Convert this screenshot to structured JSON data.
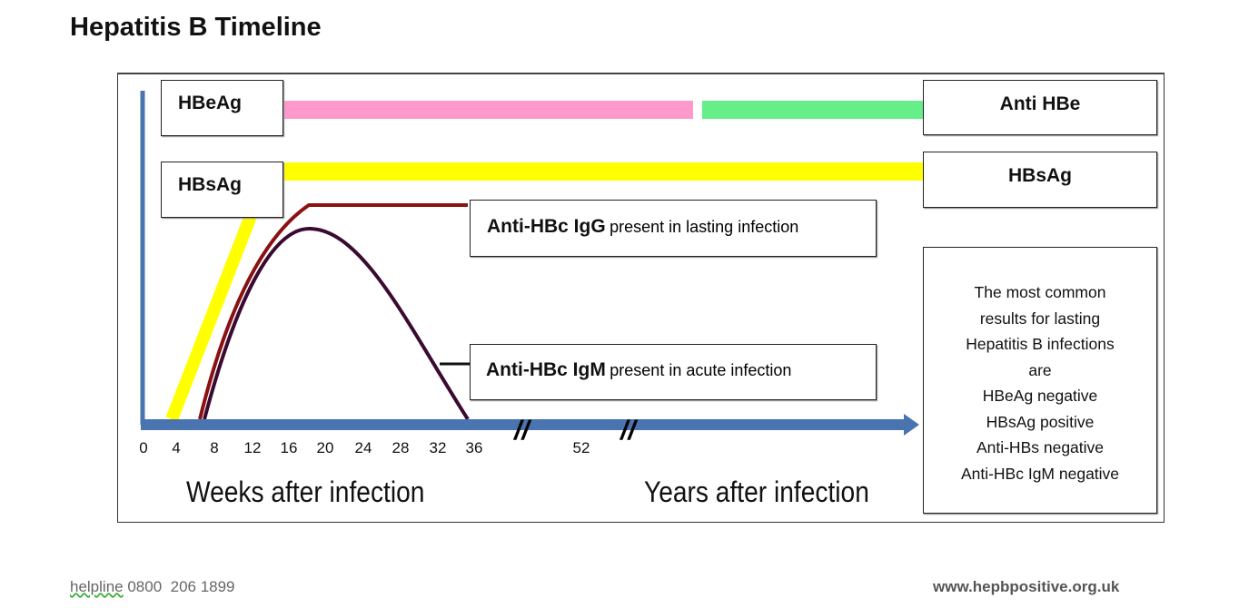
{
  "title": "Hepatitis B Timeline",
  "markers": {
    "hbeag_left": "HBeAg",
    "hbsag_left": "HBsAg",
    "anti_hbe_right": "Anti HBe",
    "hbsag_right": "HBsAg"
  },
  "igg": {
    "name": "Anti-HBc IgG",
    "desc": "present in lasting infection"
  },
  "igm": {
    "name": "Anti-HBc IgM",
    "desc": "present in acute infection"
  },
  "axis": {
    "ticks": [
      "0",
      "4",
      "8",
      "12",
      "16",
      "20",
      "24",
      "28",
      "32",
      "36",
      "52"
    ],
    "weeks_label": "Weeks after infection",
    "years_label": "Years after infection",
    "break_symbol": "//"
  },
  "info": {
    "lines": [
      "The most common",
      "results for lasting",
      "Hepatitis B infections",
      "are",
      "HBeAg negative",
      "HBsAg positive",
      "Anti-HBs negative",
      "Anti-HBc IgM negative"
    ]
  },
  "colors": {
    "hbeag": "#ff99cc",
    "anti_hbe": "#66ee88",
    "hbsag": "#ffff00",
    "igg": "#8b1010",
    "igm": "#3a0a30",
    "axis": "#4a74b0"
  },
  "footer": {
    "helpline": "helpline",
    "phone": "0800  206 1899",
    "website": "www.hepbpositive.org.uk"
  }
}
